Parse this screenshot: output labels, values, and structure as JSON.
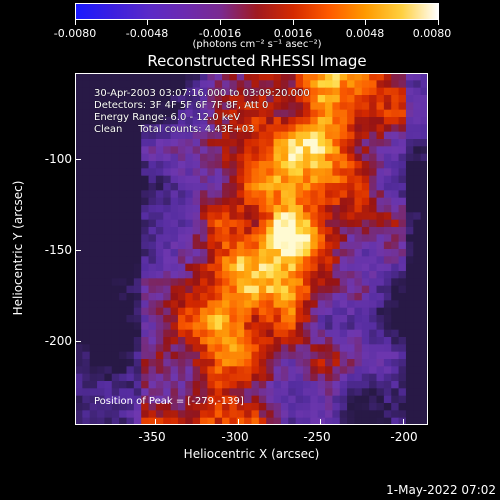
{
  "colorbar": {
    "tick_labels": [
      "-0.0080",
      "-0.0048",
      "-0.0016",
      "0.0016",
      "0.0048",
      "0.0080"
    ],
    "unit_label": "(photons cm⁻² s⁻¹ asec⁻²)",
    "min": -0.008,
    "max": 0.008
  },
  "title": "Reconstructed RHESSI Image",
  "info_lines": {
    "time": "30-Apr-2003 03:07:16.000 to 03:09:20.000",
    "detectors": "Detectors: 3F 4F 5F 6F 7F 8F, Att 0",
    "energy": "Energy Range: 6.0 - 12.0 keV",
    "clean": "Clean     Total counts: 4.43E+03"
  },
  "peak_label": "Position of Peak = [-279,-139]",
  "axes": {
    "xlabel": "Heliocentric X (arcsec)",
    "ylabel": "Heliocentric Y (arcsec)",
    "xticks": [
      "-350",
      "-300",
      "-250",
      "-200"
    ],
    "yticks": [
      "-100",
      "-150",
      "-200"
    ],
    "xlim": [
      -392,
      -200
    ],
    "ylim": [
      -244,
      -52
    ]
  },
  "footer_date": "1-May-2022 07:02",
  "colors": {
    "background": "#000000",
    "text": "#ffffff"
  }
}
